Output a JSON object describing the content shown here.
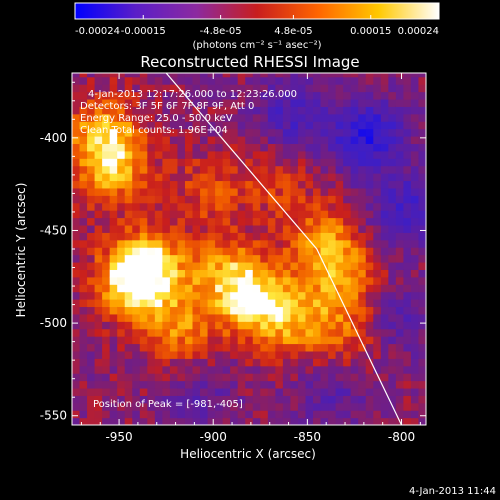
{
  "colorbar": {
    "tick_labels": [
      "-0.00024",
      "-0.00015",
      "-4.8e-05",
      "4.8e-05",
      "0.00015",
      "0.00024"
    ],
    "tick_values": [
      -0.00024,
      -0.00015,
      -4.8e-05,
      4.8e-05,
      0.00015,
      0.00024
    ],
    "range": [
      -0.00024,
      0.00024
    ],
    "units_label": "(photons cm⁻² s⁻¹ asec⁻²)",
    "colors": [
      "#0000ff",
      "#5a1ec8",
      "#8c2aa0",
      "#c81e1e",
      "#ff6400",
      "#ffc800",
      "#ffffff"
    ]
  },
  "chart_data": {
    "type": "heatmap",
    "title": "Reconstructed RHESSI Image",
    "xlabel": "Heliocentric X (arcsec)",
    "ylabel": "Heliocentric Y (arcsec)",
    "xlim": [
      -975,
      -787
    ],
    "ylim": [
      -555,
      -365
    ],
    "x_ticks": [
      -950,
      -900,
      -850,
      -800
    ],
    "x_tick_labels": [
      "-950",
      "-900",
      "-850",
      "-800"
    ],
    "y_ticks": [
      -400,
      -450,
      -500,
      -550
    ],
    "y_tick_labels": [
      "-400",
      "-450",
      "-500",
      "-550"
    ],
    "limb_line": {
      "x": [
        -925,
        -845,
        -800
      ],
      "y": [
        -365,
        -460,
        -555
      ]
    },
    "peak_position": [
      -981,
      -405
    ],
    "annotations": {
      "time_range": "4-Jan-2013 12:17:26.000 to 12:23:26.000",
      "detectors": "Detectors: 3F 5F 6F 7F 8F 9F, Att 0",
      "energy_range": "Energy Range: 25.0 - 50.0 keV",
      "method": "Clean    Total counts: 1.96E+04",
      "peak": "Position of Peak = [-981,-405]"
    },
    "intensity_regions": [
      {
        "x": -960,
        "y": -400,
        "level": 0.7
      },
      {
        "x": -955,
        "y": -420,
        "level": 0.6
      },
      {
        "x": -945,
        "y": -480,
        "level": 0.85
      },
      {
        "x": -935,
        "y": -470,
        "level": 0.7
      },
      {
        "x": -920,
        "y": -505,
        "level": 0.55
      },
      {
        "x": -895,
        "y": -475,
        "level": 0.6
      },
      {
        "x": -880,
        "y": -490,
        "level": 0.75
      },
      {
        "x": -860,
        "y": -500,
        "level": 0.55
      },
      {
        "x": -845,
        "y": -455,
        "level": 0.5
      },
      {
        "x": -835,
        "y": -475,
        "level": 0.55
      },
      {
        "x": -830,
        "y": -505,
        "level": 0.45
      },
      {
        "x": -905,
        "y": -430,
        "level": 0.35
      },
      {
        "x": -870,
        "y": -425,
        "level": 0.3
      },
      {
        "x": -860,
        "y": -390,
        "level": -0.45
      },
      {
        "x": -820,
        "y": -400,
        "level": -0.7
      },
      {
        "x": -800,
        "y": -440,
        "level": -0.5
      },
      {
        "x": -805,
        "y": -500,
        "level": -0.35
      },
      {
        "x": -910,
        "y": -540,
        "level": -0.25
      },
      {
        "x": -840,
        "y": -540,
        "level": -0.3
      }
    ]
  },
  "footer": {
    "date": "4-Jan-2013 11:44"
  }
}
